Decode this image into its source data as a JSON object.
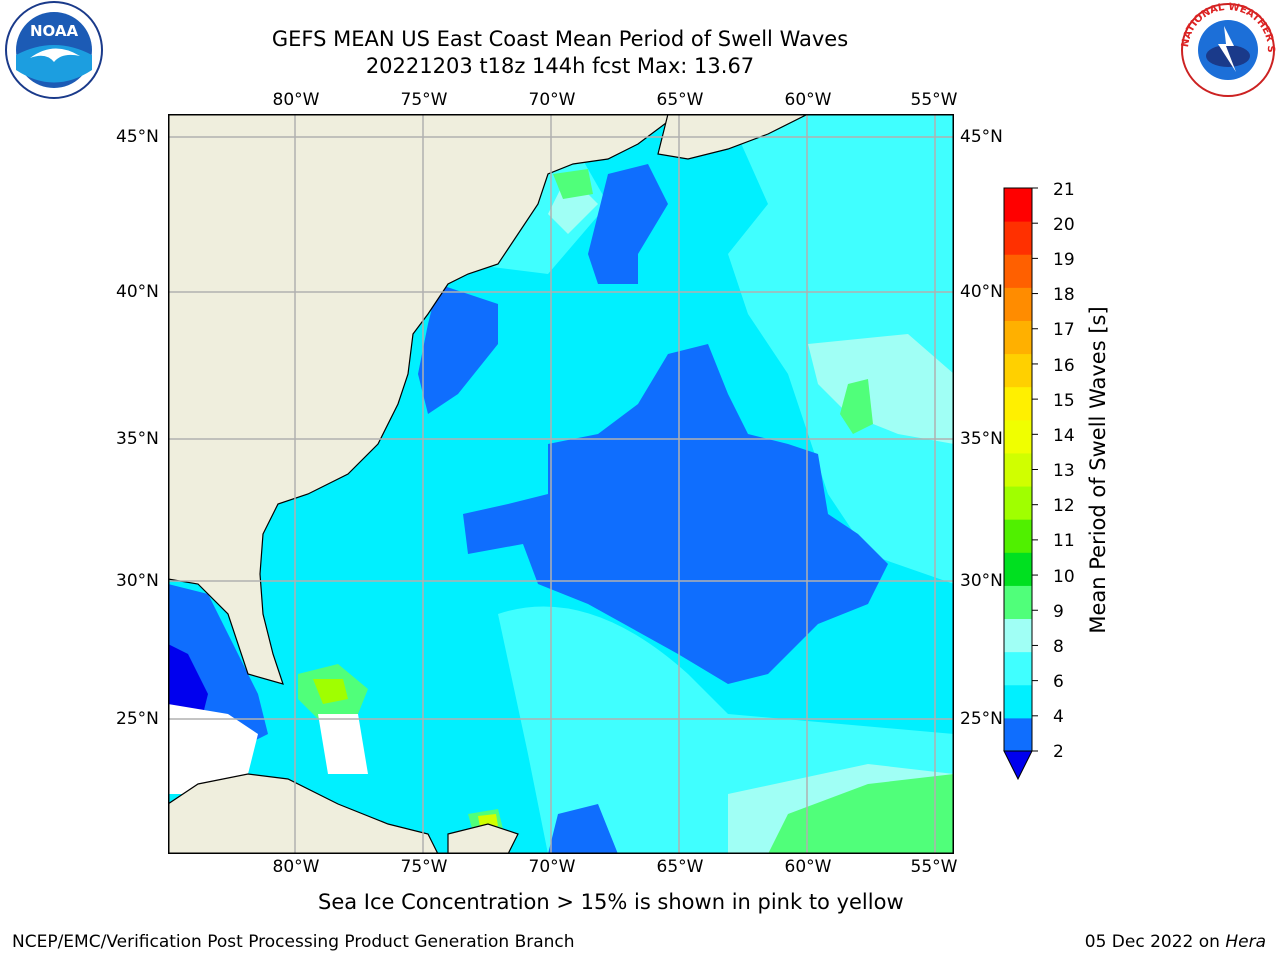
{
  "header": {
    "title_line1": "GEFS MEAN US East Coast Mean Period of Swell Waves",
    "title_line2": "20221203 t18z 144h fcst   Max: 13.67"
  },
  "map": {
    "lon_labels": [
      "80°W",
      "75°W",
      "70°W",
      "65°W",
      "60°W",
      "55°W"
    ],
    "lat_labels": [
      "45°N",
      "40°N",
      "35°N",
      "30°N",
      "25°N"
    ],
    "colors": {
      "land": "#efeedd",
      "ocean_2_4": "#0f6efe",
      "ocean_4_6": "#00f0ff",
      "ocean_6_8": "#40ffff",
      "ocean_8_9": "#a0fff5",
      "ocean_9_10": "#50ff7a",
      "ocean_below_2": "#0000ee",
      "ice_white": "#ffffff",
      "grid": "#b0b0b0"
    }
  },
  "colorbar": {
    "title": "Mean Period of Swell Waves [s]",
    "ticks": [
      "21",
      "20",
      "19",
      "18",
      "17",
      "16",
      "15",
      "14",
      "13",
      "12",
      "11",
      "10",
      "9",
      "8",
      "6",
      "4",
      "2"
    ],
    "colors": [
      "#0f6efe",
      "#00f0ff",
      "#40ffff",
      "#a0fff5",
      "#50ff7a",
      "#00e020",
      "#50f000",
      "#a0ff00",
      "#d0ff00",
      "#f0ff00",
      "#fff000",
      "#ffd000",
      "#ffb000",
      "#ff8c00",
      "#ff6000",
      "#ff3000",
      "#ff0000"
    ],
    "under_color": "#0000ee"
  },
  "footer": {
    "note": "Sea Ice Concentration > 15% is shown in pink to yellow",
    "credit": "NCEP/EMC/Verification Post Processing Product Generation Branch",
    "date": "05 Dec 2022 on ",
    "machine": "Hera"
  },
  "logos": {
    "noaa_text": "NOAA",
    "nws_text": "NATIONAL WEATHER SERVICE"
  }
}
